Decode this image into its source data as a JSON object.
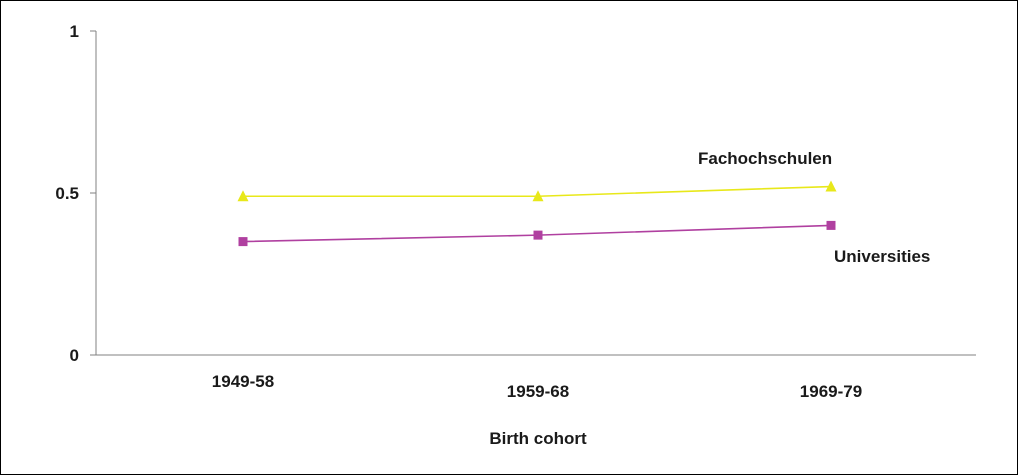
{
  "chart_data": {
    "type": "line",
    "categories": [
      "1949-58",
      "1959-68",
      "1969-79"
    ],
    "series": [
      {
        "name": "Fachochschulen",
        "values": [
          0.49,
          0.49,
          0.52
        ],
        "color": "#e8e81a",
        "marker": "triangle"
      },
      {
        "name": "Universities",
        "values": [
          0.35,
          0.37,
          0.4
        ],
        "color": "#b040a0",
        "marker": "square"
      }
    ],
    "title": "",
    "xlabel": "Birth cohort",
    "ylabel": "",
    "ylim": [
      0,
      1
    ],
    "yticks": [
      "0",
      "0.5",
      "1"
    ],
    "grid": false,
    "legend": "inline labels beside series"
  }
}
